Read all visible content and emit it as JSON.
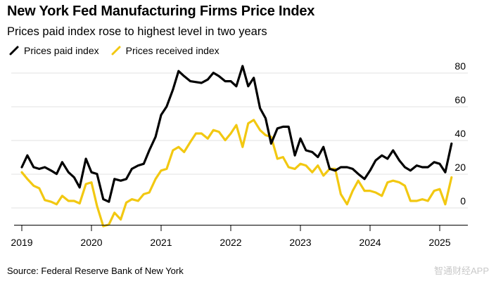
{
  "title": "New York Fed Manufacturing Firms Price Index",
  "subtitle": "Prices paid index rose to highest level in two years",
  "source": "Source: Federal Reserve Bank of New York",
  "watermark": "智通财经APP",
  "colors": {
    "paid": "#000000",
    "received": "#f2c811",
    "grid": "#e0e0e0",
    "axis": "#000000"
  },
  "chart_data": {
    "type": "line",
    "title": "New York Fed Manufacturing Firms Price Index",
    "subtitle": "Prices paid index rose to highest level in two years",
    "xlabel": "",
    "ylabel": "",
    "x_ticks": [
      "2019",
      "2020",
      "2021",
      "2022",
      "2023",
      "2024",
      "2025"
    ],
    "x_tick_values": [
      2019,
      2020,
      2021,
      2022,
      2023,
      2024,
      2025
    ],
    "y_ticks": [
      "80",
      "60",
      "40",
      "20",
      "0"
    ],
    "y_tick_values": [
      80,
      60,
      40,
      20,
      0
    ],
    "ylim": [
      -15,
      85
    ],
    "xlim": [
      2019,
      2025.25
    ],
    "grid": true,
    "legend": "top-left",
    "series": [
      {
        "name": "Prices paid index",
        "color": "#000000",
        "x": [
          2019.0,
          2019.08,
          2019.17,
          2019.25,
          2019.33,
          2019.42,
          2019.5,
          2019.58,
          2019.67,
          2019.75,
          2019.83,
          2019.92,
          2020.0,
          2020.08,
          2020.17,
          2020.25,
          2020.33,
          2020.42,
          2020.5,
          2020.58,
          2020.67,
          2020.75,
          2020.83,
          2020.92,
          2021.0,
          2021.08,
          2021.17,
          2021.25,
          2021.33,
          2021.42,
          2021.5,
          2021.58,
          2021.67,
          2021.75,
          2021.83,
          2021.92,
          2022.0,
          2022.08,
          2022.17,
          2022.25,
          2022.33,
          2022.42,
          2022.5,
          2022.58,
          2022.67,
          2022.75,
          2022.83,
          2022.92,
          2023.0,
          2023.08,
          2023.17,
          2023.25,
          2023.33,
          2023.42,
          2023.5,
          2023.58,
          2023.67,
          2023.75,
          2023.83,
          2023.92,
          2024.0,
          2024.08,
          2024.17,
          2024.25,
          2024.33,
          2024.42,
          2024.5,
          2024.58,
          2024.67,
          2024.75,
          2024.83,
          2024.92,
          2025.0,
          2025.08,
          2025.17
        ],
        "values": [
          20,
          27,
          20,
          19,
          20,
          18,
          16,
          23,
          17,
          14,
          8,
          25,
          17,
          16,
          1,
          -0.5,
          13,
          12,
          13,
          19,
          21,
          22,
          30,
          38,
          51,
          56,
          66,
          77,
          74,
          71,
          70.5,
          70,
          72,
          76,
          74,
          71,
          71,
          68,
          80,
          68,
          73,
          55,
          49,
          34,
          43,
          44,
          44,
          27,
          37,
          30,
          29,
          26,
          32,
          19,
          18,
          20,
          20,
          19,
          16,
          13,
          18,
          24,
          27,
          25,
          30,
          24,
          20,
          18,
          21,
          20,
          20,
          23,
          22,
          17,
          34
        ]
      },
      {
        "name": "Prices received index",
        "color": "#f2c811",
        "x": [
          2019.0,
          2019.08,
          2019.17,
          2019.25,
          2019.33,
          2019.42,
          2019.5,
          2019.58,
          2019.67,
          2019.75,
          2019.83,
          2019.92,
          2020.0,
          2020.08,
          2020.17,
          2020.25,
          2020.33,
          2020.42,
          2020.5,
          2020.58,
          2020.67,
          2020.75,
          2020.83,
          2020.92,
          2021.0,
          2021.08,
          2021.17,
          2021.25,
          2021.33,
          2021.42,
          2021.5,
          2021.58,
          2021.67,
          2021.75,
          2021.83,
          2021.92,
          2022.0,
          2022.08,
          2022.17,
          2022.25,
          2022.33,
          2022.42,
          2022.5,
          2022.58,
          2022.67,
          2022.75,
          2022.83,
          2022.92,
          2023.0,
          2023.08,
          2023.17,
          2023.25,
          2023.33,
          2023.42,
          2023.5,
          2023.58,
          2023.67,
          2023.75,
          2023.83,
          2023.92,
          2024.0,
          2024.08,
          2024.17,
          2024.25,
          2024.33,
          2024.42,
          2024.5,
          2024.58,
          2024.67,
          2024.75,
          2024.83,
          2024.92,
          2025.0,
          2025.08,
          2025.17
        ],
        "values": [
          17,
          13,
          9,
          7.5,
          0.5,
          -0.5,
          -2,
          3,
          0,
          0,
          -1.5,
          10,
          11,
          -3,
          -15,
          -14,
          -7,
          -11,
          -1,
          1,
          0,
          4,
          5,
          13,
          18,
          19,
          30,
          32,
          29,
          35,
          40,
          40,
          37,
          42,
          41,
          36,
          40,
          45,
          32,
          46,
          48,
          42,
          39,
          38,
          25,
          26,
          20,
          19,
          22,
          21,
          17,
          21,
          15,
          19,
          19,
          4,
          -2,
          6,
          12,
          6,
          6,
          5,
          3,
          11,
          12,
          11,
          9,
          0,
          0,
          1,
          0,
          6,
          7,
          -2,
          14
        ]
      }
    ]
  }
}
